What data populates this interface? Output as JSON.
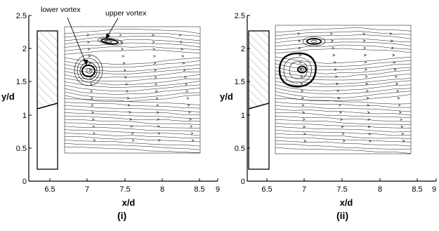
{
  "figure": {
    "panels": [
      {
        "id": "i",
        "label": "(i)",
        "annotations": [
          "lower vortex",
          "upper vortex"
        ],
        "x_axis": {
          "label": "x/d",
          "ticks": [
            "6.5",
            "7",
            "7.5",
            "8",
            "8.5",
            "9"
          ]
        },
        "y_axis": {
          "label": "y/d",
          "ticks": [
            "0",
            "0.5",
            "1",
            "1.5",
            "2",
            "2.5"
          ]
        }
      },
      {
        "id": "ii",
        "label": "(ii)",
        "annotations": [],
        "x_axis": {
          "label": "x/d",
          "ticks": [
            "6.5",
            "7",
            "7.5",
            "8",
            "8.5",
            "9"
          ]
        },
        "y_axis": {
          "label": "y/d",
          "ticks": [
            "0",
            "0.5",
            "1",
            "1.5",
            "2",
            "2.5"
          ]
        }
      }
    ]
  },
  "colors": {
    "lines": "#000000",
    "hatch": "#8a8a8a",
    "background": "#ffffff"
  }
}
